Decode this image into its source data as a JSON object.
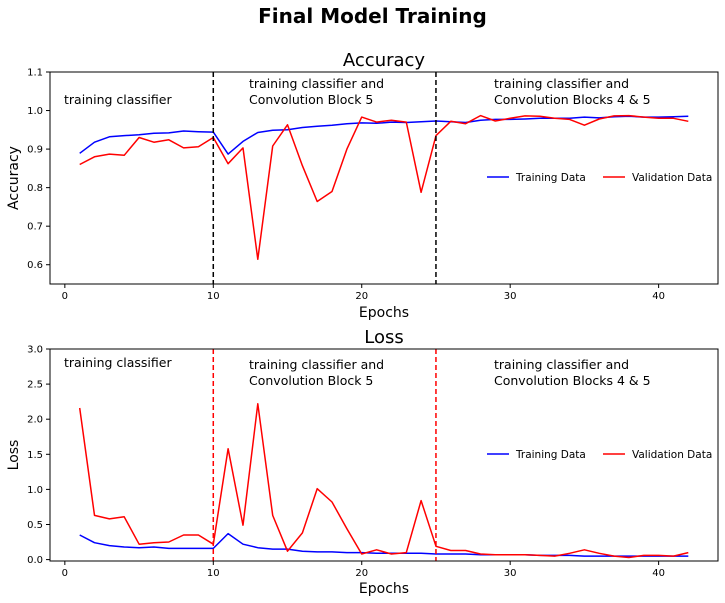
{
  "suptitle": "Final Model Training",
  "charts": [
    {
      "id": "accuracy",
      "type": "line",
      "title": "Accuracy",
      "xlabel": "Epochs",
      "ylabel": "Accuracy",
      "xlim": [
        -1,
        44
      ],
      "ylim": [
        0.55,
        1.1
      ],
      "xticks": [
        0,
        10,
        20,
        30,
        40
      ],
      "yticks": [
        0.6,
        0.7,
        0.8,
        0.9,
        1.0,
        1.1
      ],
      "ytick_labels": [
        "0.6",
        "0.7",
        "0.8",
        "0.9",
        "1.0",
        "1.1"
      ],
      "vlines": [
        {
          "x": 10,
          "color": "#000000"
        },
        {
          "x": 25,
          "color": "#000000"
        }
      ],
      "annotations": [
        {
          "lines": [
            "training classifier"
          ]
        },
        {
          "lines": [
            "training classifier and",
            "Convolution Block 5"
          ]
        },
        {
          "lines": [
            "training classifier and",
            "Convolution Blocks 4 & 5"
          ]
        }
      ],
      "legend_placement": "center-right",
      "series": [
        {
          "name": "Training Data",
          "color": "#0000ff",
          "x": [
            1,
            2,
            3,
            4,
            5,
            6,
            7,
            8,
            9,
            10,
            11,
            12,
            13,
            14,
            15,
            16,
            17,
            18,
            19,
            20,
            21,
            22,
            23,
            24,
            25,
            26,
            27,
            28,
            29,
            30,
            31,
            32,
            33,
            34,
            35,
            36,
            37,
            38,
            39,
            40,
            41,
            42
          ],
          "y": [
            0.889,
            0.918,
            0.932,
            0.935,
            0.937,
            0.941,
            0.942,
            0.947,
            0.945,
            0.944,
            0.887,
            0.92,
            0.943,
            0.949,
            0.95,
            0.956,
            0.959,
            0.962,
            0.966,
            0.968,
            0.967,
            0.97,
            0.969,
            0.971,
            0.973,
            0.971,
            0.969,
            0.975,
            0.977,
            0.977,
            0.978,
            0.98,
            0.98,
            0.98,
            0.983,
            0.981,
            0.984,
            0.985,
            0.983,
            0.983,
            0.984,
            0.985
          ]
        },
        {
          "name": "Validation Data",
          "color": "#ff0000",
          "x": [
            1,
            2,
            3,
            4,
            5,
            6,
            7,
            8,
            9,
            10,
            11,
            12,
            13,
            14,
            15,
            16,
            17,
            18,
            19,
            20,
            21,
            22,
            23,
            24,
            25,
            26,
            27,
            28,
            29,
            30,
            31,
            32,
            33,
            34,
            35,
            36,
            37,
            38,
            39,
            40,
            41,
            42
          ],
          "y": [
            0.86,
            0.88,
            0.887,
            0.884,
            0.93,
            0.918,
            0.924,
            0.903,
            0.906,
            0.93,
            0.862,
            0.903,
            0.614,
            0.908,
            0.963,
            0.857,
            0.764,
            0.79,
            0.9,
            0.983,
            0.97,
            0.975,
            0.97,
            0.788,
            0.935,
            0.972,
            0.966,
            0.987,
            0.973,
            0.98,
            0.986,
            0.985,
            0.98,
            0.977,
            0.962,
            0.978,
            0.986,
            0.987,
            0.983,
            0.98,
            0.98,
            0.972
          ]
        }
      ]
    },
    {
      "id": "loss",
      "type": "line",
      "title": "Loss",
      "xlabel": "Epochs",
      "ylabel": "Loss",
      "xlim": [
        -1,
        44
      ],
      "ylim": [
        -0.02,
        3.0
      ],
      "xticks": [
        0,
        10,
        20,
        30,
        40
      ],
      "yticks": [
        0.0,
        0.5,
        1.0,
        1.5,
        2.0,
        2.5,
        3.0
      ],
      "ytick_labels": [
        "0.0",
        "0.5",
        "1.0",
        "1.5",
        "2.0",
        "2.5",
        "3.0"
      ],
      "vlines": [
        {
          "x": 10,
          "color": "#ff0000"
        },
        {
          "x": 25,
          "color": "#ff0000"
        }
      ],
      "annotations": [
        {
          "lines": [
            "training classifier"
          ]
        },
        {
          "lines": [
            "training classifier and",
            "Convolution Block 5"
          ]
        },
        {
          "lines": [
            "training classifier and",
            "Convolution Blocks 4 & 5"
          ]
        }
      ],
      "legend_placement": "center-right",
      "series": [
        {
          "name": "Training Data",
          "color": "#0000ff",
          "x": [
            1,
            2,
            3,
            4,
            5,
            6,
            7,
            8,
            9,
            10,
            11,
            12,
            13,
            14,
            15,
            16,
            17,
            18,
            19,
            20,
            21,
            22,
            23,
            24,
            25,
            26,
            27,
            28,
            29,
            30,
            31,
            32,
            33,
            34,
            35,
            36,
            37,
            38,
            39,
            40,
            41,
            42
          ],
          "y": [
            0.35,
            0.24,
            0.2,
            0.18,
            0.17,
            0.18,
            0.16,
            0.16,
            0.16,
            0.16,
            0.37,
            0.22,
            0.17,
            0.15,
            0.15,
            0.12,
            0.11,
            0.11,
            0.1,
            0.1,
            0.09,
            0.09,
            0.09,
            0.09,
            0.08,
            0.08,
            0.08,
            0.07,
            0.07,
            0.07,
            0.07,
            0.06,
            0.06,
            0.06,
            0.05,
            0.05,
            0.05,
            0.05,
            0.05,
            0.05,
            0.05,
            0.05
          ]
        },
        {
          "name": "Validation Data",
          "color": "#ff0000",
          "x": [
            1,
            2,
            3,
            4,
            5,
            6,
            7,
            8,
            9,
            10,
            11,
            12,
            13,
            14,
            15,
            16,
            17,
            18,
            19,
            20,
            21,
            22,
            23,
            24,
            25,
            26,
            27,
            28,
            29,
            30,
            31,
            32,
            33,
            34,
            35,
            36,
            37,
            38,
            39,
            40,
            41,
            42
          ],
          "y": [
            2.16,
            0.63,
            0.58,
            0.61,
            0.22,
            0.24,
            0.25,
            0.35,
            0.35,
            0.22,
            1.58,
            0.49,
            2.22,
            0.63,
            0.12,
            0.38,
            1.01,
            0.82,
            0.44,
            0.08,
            0.14,
            0.08,
            0.1,
            0.84,
            0.19,
            0.13,
            0.13,
            0.08,
            0.07,
            0.07,
            0.07,
            0.06,
            0.05,
            0.09,
            0.14,
            0.09,
            0.05,
            0.03,
            0.06,
            0.06,
            0.05,
            0.1
          ]
        }
      ]
    }
  ]
}
